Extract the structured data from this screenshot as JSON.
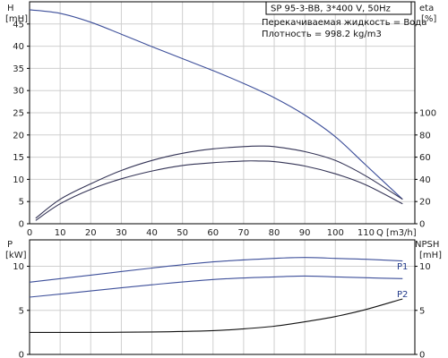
{
  "colors": {
    "axis": "#000000",
    "grid": "#cfcfcf",
    "curve_blue": "#3d4f9a",
    "curve_dark": "#333355",
    "npsh": "#111111"
  },
  "header": {
    "title": "SP 95-3-BB, 3*400 V, 50Hz",
    "info_liquid": "Перекачиваемая жидкость = Вода",
    "info_density": "Плотность = 998.2 kg/m3"
  },
  "chart_data": [
    {
      "type": "line",
      "title": "SP 95-3-BB, 3*400 V, 50Hz",
      "xlabel": "Q [m3/h]",
      "xlim": [
        0,
        126
      ],
      "x_ticks": [
        "0",
        "10",
        "20",
        "30",
        "40",
        "50",
        "60",
        "70",
        "80",
        "90",
        "100",
        "110"
      ],
      "x_tick_values": [
        0,
        10,
        20,
        30,
        40,
        50,
        60,
        70,
        80,
        90,
        100,
        110
      ],
      "y_left": {
        "label": "H",
        "unit": "[mH]",
        "ylim": [
          0,
          50
        ],
        "ticks": [
          "0",
          "5",
          "10",
          "15",
          "20",
          "25",
          "30",
          "35",
          "40",
          "45"
        ],
        "tick_values": [
          0,
          5,
          10,
          15,
          20,
          25,
          30,
          35,
          40,
          45
        ]
      },
      "y_right": {
        "label": "eta",
        "unit": "[%]",
        "ylim": [
          0,
          200
        ],
        "ticks": [
          "0",
          "20",
          "40",
          "60",
          "80",
          "100"
        ],
        "tick_values": [
          0,
          20,
          40,
          60,
          80,
          100
        ]
      },
      "grid": true,
      "series": [
        {
          "axis": "left",
          "color": "#3d4f9a",
          "x": [
            0,
            10,
            20,
            30,
            40,
            50,
            60,
            70,
            80,
            90,
            100,
            110,
            122
          ],
          "y": [
            48.2,
            47.4,
            45.4,
            42.7,
            39.9,
            37.2,
            34.5,
            31.6,
            28.4,
            24.5,
            19.6,
            13.2,
            5.5
          ]
        },
        {
          "axis": "right",
          "color": "#333355",
          "x": [
            2,
            10,
            20,
            30,
            40,
            50,
            60,
            70,
            75,
            80,
            90,
            100,
            110,
            122
          ],
          "y": [
            5,
            22,
            36,
            48,
            57,
            63.5,
            67.5,
            69.5,
            70,
            69.5,
            65,
            57,
            43,
            22
          ]
        },
        {
          "axis": "right",
          "color": "#333355",
          "x": [
            2,
            10,
            20,
            30,
            40,
            50,
            60,
            70,
            75,
            80,
            90,
            100,
            110,
            122
          ],
          "y": [
            3,
            18,
            31,
            40.5,
            47.5,
            52.5,
            55,
            56.5,
            56.5,
            56,
            52,
            45,
            35,
            18
          ]
        }
      ]
    },
    {
      "type": "line",
      "xlim": [
        0,
        126
      ],
      "y_left": {
        "label": "P",
        "unit": "[kW]",
        "ylim": [
          0,
          13
        ],
        "ticks": [
          "0",
          "5",
          "10"
        ],
        "tick_values": [
          0,
          5,
          10
        ]
      },
      "y_right": {
        "label": "NPSH",
        "unit": "[mH]",
        "ylim": [
          0,
          13
        ],
        "ticks": [
          "0",
          "5",
          "10"
        ],
        "tick_values": [
          0,
          5,
          10
        ]
      },
      "grid": true,
      "series": [
        {
          "name": "P1",
          "axis": "left",
          "color": "#3d4f9a",
          "x": [
            0,
            20,
            40,
            60,
            80,
            90,
            100,
            110,
            122
          ],
          "y": [
            8.2,
            9.0,
            9.8,
            10.5,
            10.9,
            11.0,
            10.9,
            10.8,
            10.6
          ]
        },
        {
          "name": "P2",
          "axis": "left",
          "color": "#3d4f9a",
          "x": [
            0,
            20,
            40,
            60,
            80,
            90,
            100,
            110,
            122
          ],
          "y": [
            6.5,
            7.2,
            7.9,
            8.5,
            8.8,
            8.9,
            8.8,
            8.7,
            8.6
          ]
        },
        {
          "axis": "right",
          "color": "#111111",
          "x": [
            0,
            20,
            40,
            60,
            70,
            80,
            90,
            100,
            110,
            122
          ],
          "y": [
            2.5,
            2.5,
            2.55,
            2.7,
            2.9,
            3.2,
            3.7,
            4.3,
            5.1,
            6.3
          ]
        }
      ]
    }
  ]
}
